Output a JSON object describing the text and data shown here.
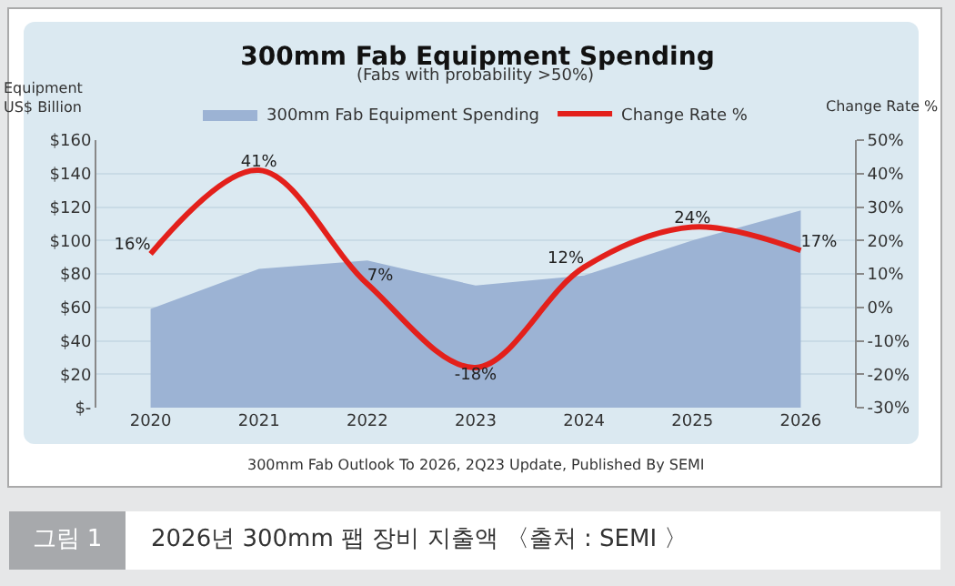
{
  "chart_data": {
    "type": "area",
    "title": "300mm Fab Equipment Spending",
    "subtitle": "(Fabs with probability >50%)",
    "ylabel": "Equipment US$ Billion",
    "y2label": "Change Rate %",
    "annotations": [
      "300mm Fab Outlook To 2026, 2Q23 Update, Published By SEMI",
      "그림 1",
      "2026년 300mm 팹 장비 지출액 〈출처 : SEMI 〉"
    ],
    "categories": [
      "2020",
      "2021",
      "2022",
      "2023",
      "2024",
      "2025",
      "2026"
    ],
    "series": [
      {
        "name": "300mm Fab Equipment Spending",
        "color": "#9cb3d4",
        "values": [
          59,
          83,
          88,
          73,
          79,
          100,
          118
        ]
      },
      {
        "name": "Change Rate %",
        "type": "line",
        "axis": "y2",
        "color": "#e3201b",
        "values": [
          16,
          41,
          7,
          -18,
          12,
          24,
          17
        ],
        "value_labels": [
          "16%",
          "41%",
          "7%",
          "-18%",
          "12%",
          "24%",
          "17%"
        ]
      }
    ],
    "ylim": [
      0,
      160
    ],
    "yticks": [
      {
        "value": 0,
        "label": "$-"
      },
      {
        "value": 20,
        "label": "$20"
      },
      {
        "value": 40,
        "label": "$40"
      },
      {
        "value": 60,
        "label": "$60"
      },
      {
        "value": 80,
        "label": "$80"
      },
      {
        "value": 100,
        "label": "$100"
      },
      {
        "value": 120,
        "label": "$120"
      },
      {
        "value": 140,
        "label": "$140"
      },
      {
        "value": 160,
        "label": "$160"
      }
    ],
    "y2lim": [
      -30,
      50
    ],
    "y2ticks": [
      {
        "value": -30,
        "label": "-30%"
      },
      {
        "value": -20,
        "label": "-20%"
      },
      {
        "value": -10,
        "label": "-10%"
      },
      {
        "value": 0,
        "label": "0%"
      },
      {
        "value": 10,
        "label": "10%"
      },
      {
        "value": 20,
        "label": "20%"
      },
      {
        "value": 30,
        "label": "30%"
      },
      {
        "value": 40,
        "label": "40%"
      },
      {
        "value": 50,
        "label": "50%"
      }
    ],
    "grid": "y",
    "legend": "top"
  }
}
